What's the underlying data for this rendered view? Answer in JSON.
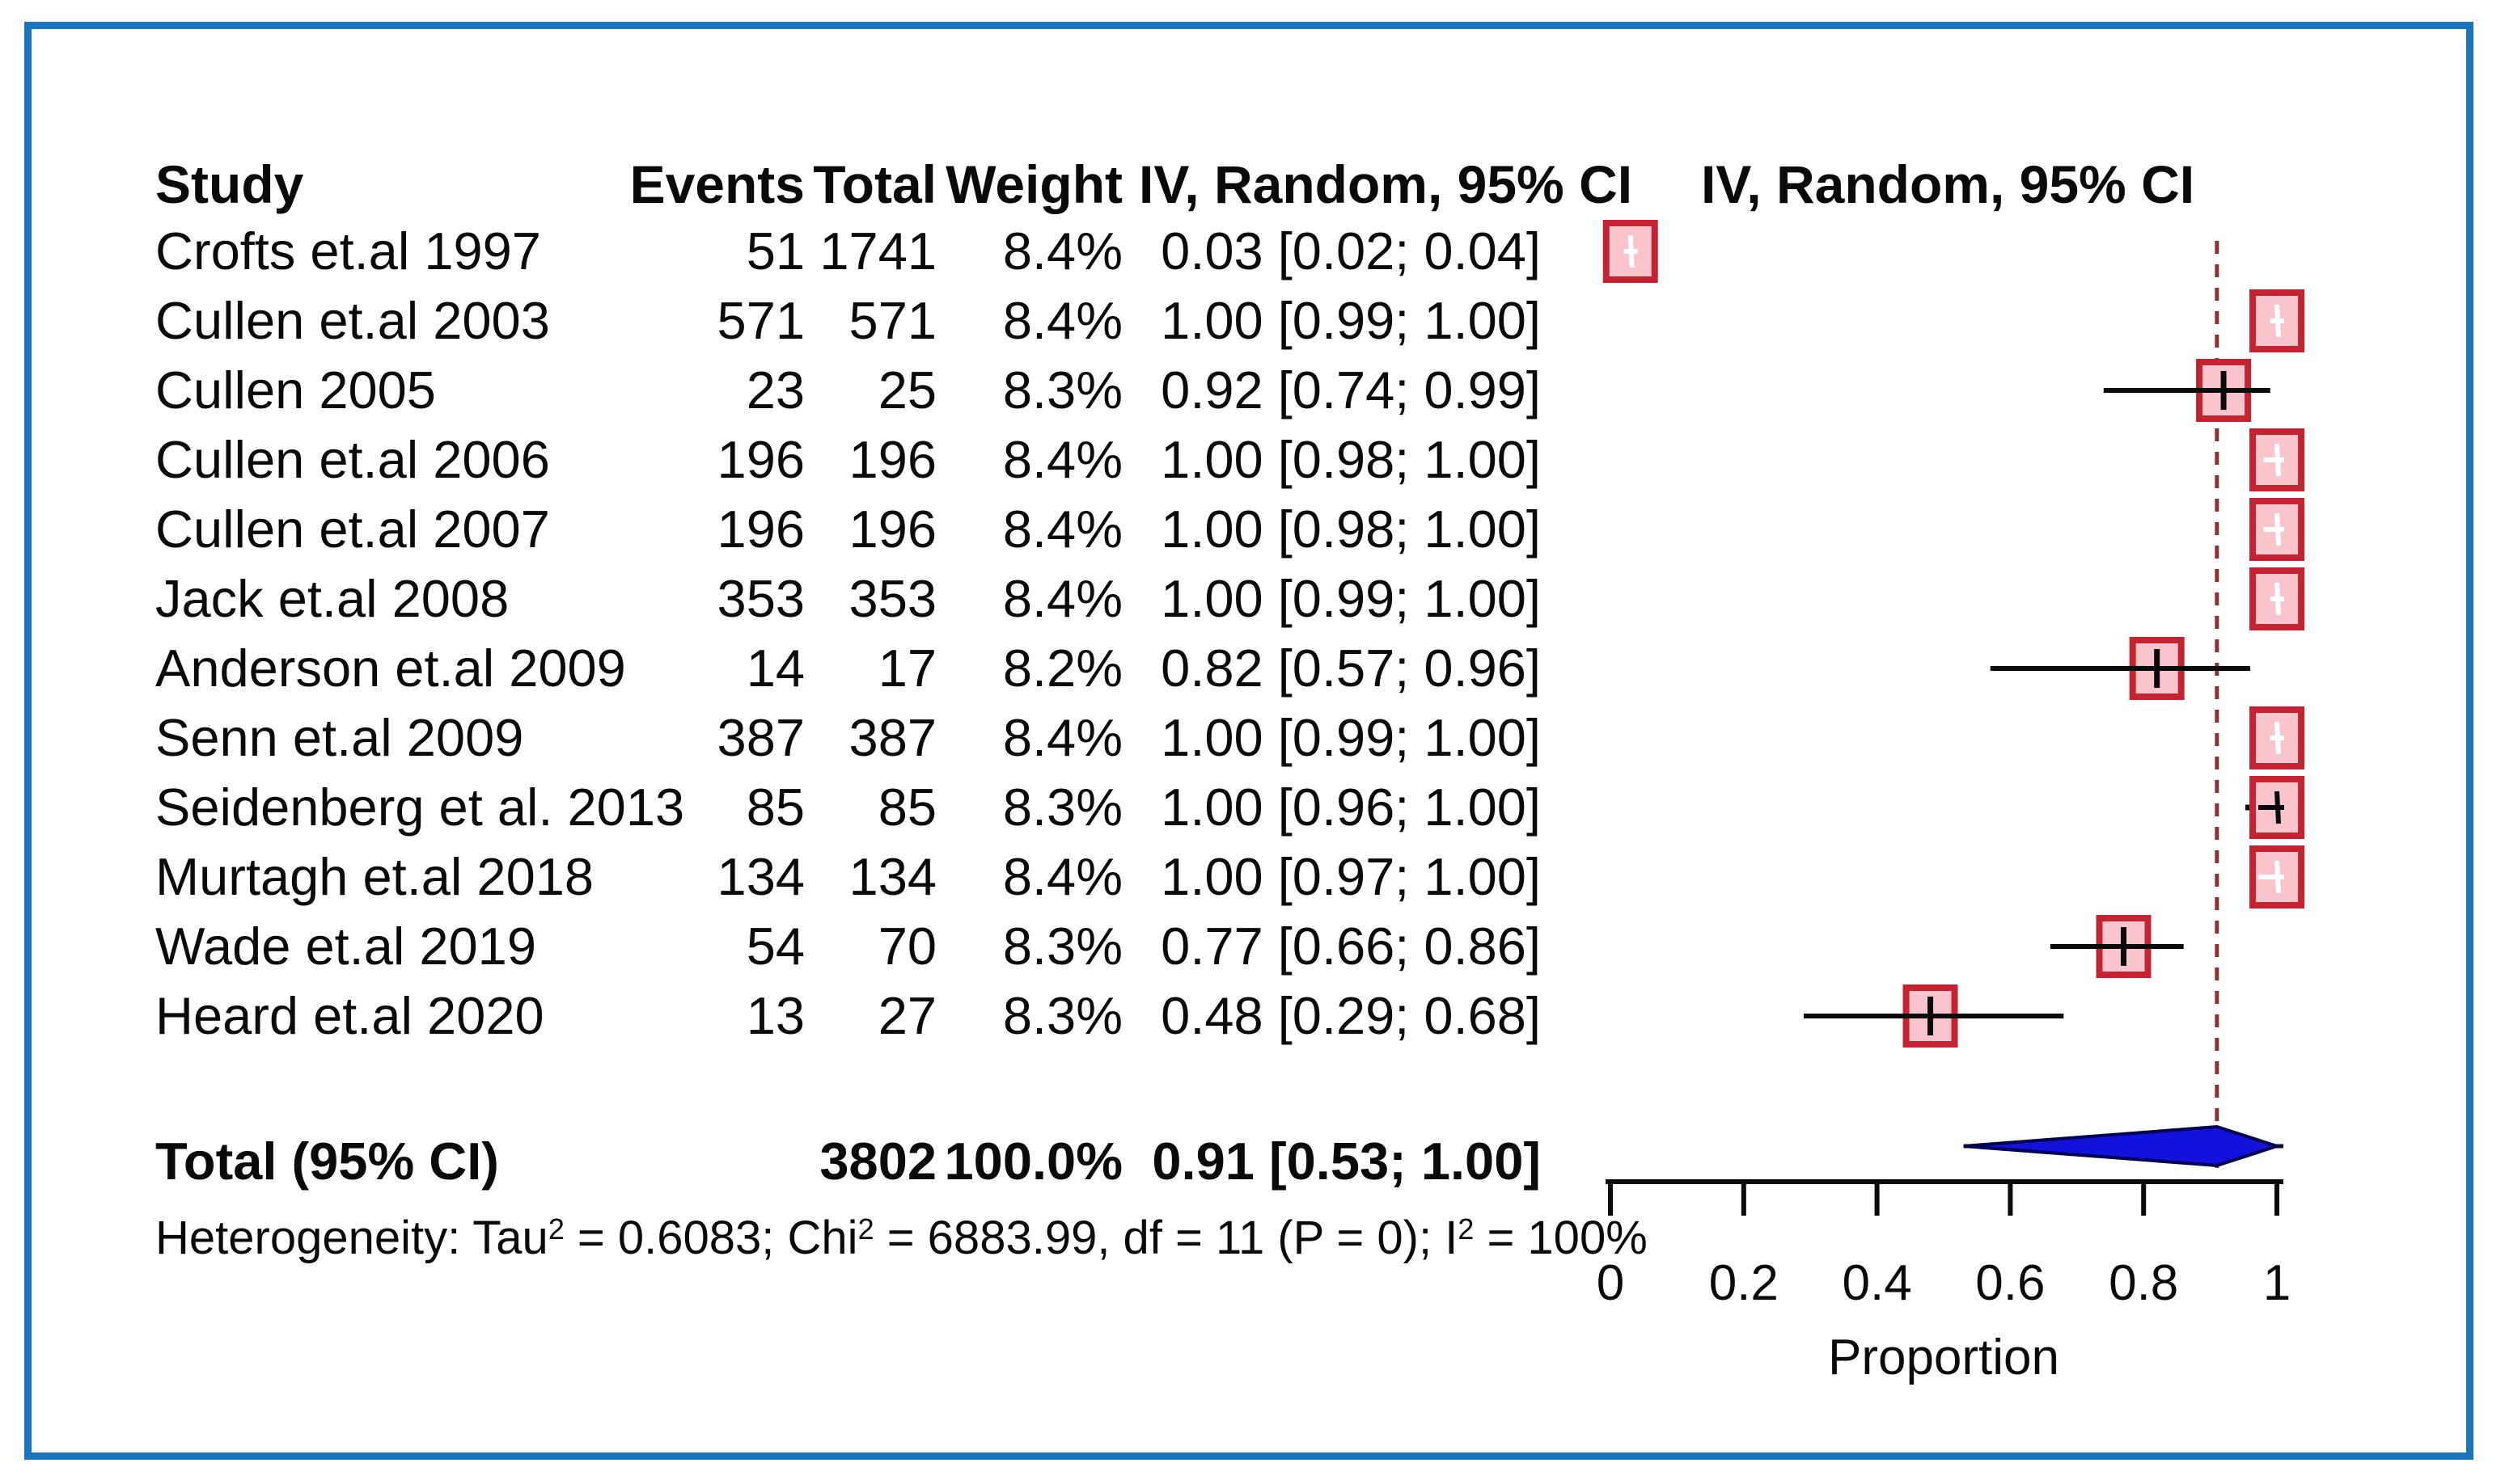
{
  "frame": {
    "border_color": "#1b74be"
  },
  "table": {
    "headers": {
      "study": "Study",
      "events": "Events",
      "total": "Total",
      "weight": "Weight",
      "ci": "IV, Random, 95% CI"
    },
    "plot_header": "IV, Random, 95% CI"
  },
  "chart_data": {
    "type": "forest",
    "studies": [
      {
        "study": "Crofts et.al 1997",
        "events": 51,
        "total": 1741,
        "weight": "8.4%",
        "estimate": 0.03,
        "ci_low": 0.02,
        "ci_high": 0.04,
        "ci_label": "0.03 [0.02; 0.04]",
        "mark": "white"
      },
      {
        "study": "Cullen et.al 2003",
        "events": 571,
        "total": 571,
        "weight": "8.4%",
        "estimate": 1.0,
        "ci_low": 0.99,
        "ci_high": 1.0,
        "ci_label": "1.00 [0.99; 1.00]",
        "mark": "white"
      },
      {
        "study": "Cullen 2005",
        "events": 23,
        "total": 25,
        "weight": "8.3%",
        "estimate": 0.92,
        "ci_low": 0.74,
        "ci_high": 0.99,
        "ci_label": "0.92 [0.74; 0.99]",
        "mark": "open"
      },
      {
        "study": "Cullen et.al 2006",
        "events": 196,
        "total": 196,
        "weight": "8.4%",
        "estimate": 1.0,
        "ci_low": 0.98,
        "ci_high": 1.0,
        "ci_label": "1.00 [0.98; 1.00]",
        "mark": "white"
      },
      {
        "study": "Cullen et.al 2007",
        "events": 196,
        "total": 196,
        "weight": "8.4%",
        "estimate": 1.0,
        "ci_low": 0.98,
        "ci_high": 1.0,
        "ci_label": "1.00 [0.98; 1.00]",
        "mark": "white"
      },
      {
        "study": "Jack et.al 2008",
        "events": 353,
        "total": 353,
        "weight": "8.4%",
        "estimate": 1.0,
        "ci_low": 0.99,
        "ci_high": 1.0,
        "ci_label": "1.00 [0.99; 1.00]",
        "mark": "white"
      },
      {
        "study": "Anderson et.al 2009",
        "events": 14,
        "total": 17,
        "weight": "8.2%",
        "estimate": 0.82,
        "ci_low": 0.57,
        "ci_high": 0.96,
        "ci_label": "0.82 [0.57; 0.96]",
        "mark": "open"
      },
      {
        "study": "Senn et.al 2009",
        "events": 387,
        "total": 387,
        "weight": "8.4%",
        "estimate": 1.0,
        "ci_low": 0.99,
        "ci_high": 1.0,
        "ci_label": "1.00 [0.99; 1.00]",
        "mark": "white"
      },
      {
        "study": "Seidenberg et al. 2013",
        "events": 85,
        "total": 85,
        "weight": "8.3%",
        "estimate": 1.0,
        "ci_low": 0.96,
        "ci_high": 1.0,
        "ci_label": "1.00 [0.96; 1.00]",
        "mark": "black"
      },
      {
        "study": "Murtagh et.al 2018",
        "events": 134,
        "total": 134,
        "weight": "8.4%",
        "estimate": 1.0,
        "ci_low": 0.97,
        "ci_high": 1.0,
        "ci_label": "1.00 [0.97; 1.00]",
        "mark": "white"
      },
      {
        "study": "Wade et.al 2019",
        "events": 54,
        "total": 70,
        "weight": "8.3%",
        "estimate": 0.77,
        "ci_low": 0.66,
        "ci_high": 0.86,
        "ci_label": "0.77 [0.66; 0.86]",
        "mark": "open"
      },
      {
        "study": "Heard et.al 2020",
        "events": 13,
        "total": 27,
        "weight": "8.3%",
        "estimate": 0.48,
        "ci_low": 0.29,
        "ci_high": 0.68,
        "ci_label": "0.48 [0.29; 0.68]",
        "mark": "open"
      }
    ],
    "total": {
      "label": "Total (95% CI)",
      "total": "3802",
      "weight": "100.0%",
      "estimate": 0.91,
      "ci_low": 0.53,
      "ci_high": 1.0,
      "ci_label": "0.91 [0.53; 1.00]"
    },
    "heterogeneity_segments": [
      {
        "t": "Heterogeneity: Tau"
      },
      {
        "t": "2",
        "sup": true
      },
      {
        "t": " = 0.6083; Chi"
      },
      {
        "t": "2",
        "sup": true
      },
      {
        "t": " = 6883.99, df = 11 (P = 0); I"
      },
      {
        "t": "2",
        "sup": true
      },
      {
        "t": " = 100%"
      }
    ],
    "reference_line": 0.91,
    "axis": {
      "xlim": [
        0,
        1
      ],
      "ticks": [
        0,
        0.2,
        0.4,
        0.6,
        0.8,
        1
      ],
      "tick_labels": [
        "0",
        "0.2",
        "0.4",
        "0.6",
        "0.8",
        "1"
      ],
      "xlabel": "Proportion",
      "grid": false
    },
    "colors": {
      "square_fill": "#fac4cc",
      "square_stroke": "#c42431",
      "reference_line": "#8b3434",
      "diamond_fill": "#1212dc",
      "diamond_stroke": "#000050",
      "ci_line": "#0a0a0a",
      "frame": "#1b74be"
    }
  }
}
